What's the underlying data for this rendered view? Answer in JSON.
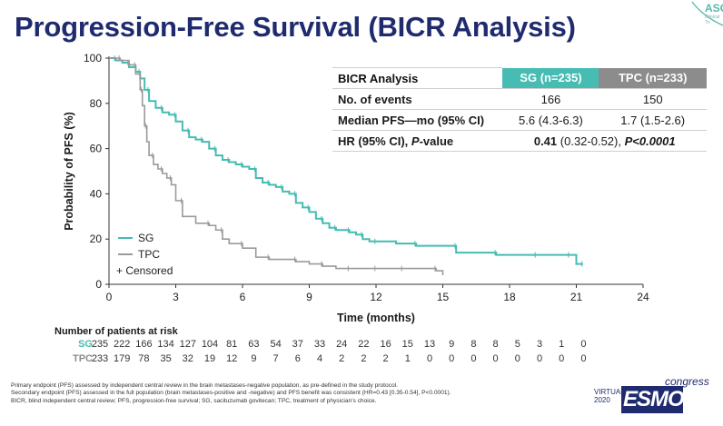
{
  "title": "Progression-Free Survival (BICR Analysis)",
  "logo": {
    "top_right_text": "ASC",
    "top_right_sub": "Clinical Tri",
    "esmo_prefix": "VIRTUAL\n2020",
    "esmo_word": "ESMO",
    "esmo_suffix": "congress"
  },
  "colors": {
    "sg": "#46bcb2",
    "tpc": "#9a9a9a",
    "title": "#1f2b6e"
  },
  "table": {
    "header": [
      "BICR Analysis",
      "SG (n=235)",
      "TPC (n=233)"
    ],
    "rows": [
      {
        "label": "No. of events",
        "sg": "166",
        "tpc": "150"
      },
      {
        "label": "Median PFS—mo (95% CI)",
        "sg": "5.6 (4.3-6.3)",
        "tpc": "1.7 (1.5-2.6)"
      }
    ],
    "hr_label_a": "HR (95% CI), ",
    "hr_label_b": "P",
    "hr_label_c": "-value",
    "hr_value_a": "0.41",
    "hr_value_b": " (0.32-0.52), ",
    "hr_value_c": "P<0.0001"
  },
  "risk": {
    "title": "Number of patients at risk",
    "rows": [
      {
        "label": "SG",
        "values": [
          235,
          222,
          166,
          134,
          127,
          104,
          81,
          63,
          54,
          37,
          33,
          24,
          22,
          16,
          15,
          13,
          9,
          8,
          8,
          5,
          3,
          1,
          0
        ]
      },
      {
        "label": "TPC",
        "values": [
          233,
          179,
          78,
          35,
          32,
          19,
          12,
          9,
          7,
          6,
          4,
          2,
          2,
          2,
          1,
          0,
          0,
          0,
          0,
          0,
          0,
          0,
          0
        ]
      }
    ]
  },
  "footnotes": [
    "Primary endpoint (PFS) assessed by independent central review in the brain metastases-negative population, as pre-defined in the study protocol.",
    "Secondary endpoint (PFS) assessed in the full population (brain metastases-positive and -negative) and PFS benefit was consistent (HR=0.43 [0.35-0.54], P<0.0001).",
    "BICR, blind independent central review; PFS, progression-free survival; SG, sacituzumab govitecan; TPC, treatment of physician’s choice."
  ],
  "chart_data": {
    "type": "line",
    "xlabel": "Time (months)",
    "ylabel": "Probability of PFS (%)",
    "xlim": [
      0,
      24
    ],
    "ylim": [
      0,
      100
    ],
    "xticks": [
      0,
      3,
      6,
      9,
      12,
      15,
      18,
      21,
      24
    ],
    "yticks": [
      0,
      20,
      40,
      60,
      80,
      100
    ],
    "grid": false,
    "legend_position": "bottom-left",
    "legend": [
      "SG",
      "TPC",
      "+ Censored"
    ],
    "series": [
      {
        "name": "SG",
        "x": [
          0,
          0.3,
          0.6,
          0.9,
          1.2,
          1.4,
          1.6,
          1.8,
          2.1,
          2.4,
          2.7,
          3.0,
          3.3,
          3.6,
          3.9,
          4.2,
          4.5,
          4.8,
          5.1,
          5.4,
          5.7,
          6.0,
          6.3,
          6.6,
          6.9,
          7.2,
          7.5,
          7.8,
          8.1,
          8.4,
          8.7,
          9.0,
          9.3,
          9.6,
          9.9,
          10.2,
          10.5,
          10.8,
          11.1,
          11.4,
          11.7,
          12.0,
          12.9,
          13.8,
          14.7,
          15.6,
          16.5,
          17.4,
          18.3,
          19.2,
          20.1,
          20.7,
          21.0,
          21.3
        ],
        "y": [
          100,
          99,
          98,
          96,
          94,
          91,
          86,
          81,
          78,
          76,
          75,
          72,
          68,
          65,
          64,
          63,
          60,
          57,
          55,
          54,
          53,
          52,
          51,
          47,
          45,
          44,
          43,
          41,
          40,
          36,
          34,
          32,
          29,
          27,
          25,
          24,
          24,
          23,
          22,
          20,
          19,
          19,
          18,
          17,
          17,
          14,
          14,
          13,
          13,
          13,
          13,
          13,
          9,
          9
        ]
      },
      {
        "name": "TPC",
        "x": [
          0,
          0.5,
          0.9,
          1.2,
          1.4,
          1.5,
          1.6,
          1.7,
          1.8,
          2.0,
          2.2,
          2.4,
          2.6,
          2.8,
          3.0,
          3.3,
          3.9,
          4.5,
          4.8,
          5.1,
          5.4,
          6.0,
          6.6,
          7.2,
          7.8,
          8.4,
          9.0,
          9.6,
          10.2,
          10.8,
          11.4,
          12.0,
          12.6,
          13.2,
          14.1,
          14.7,
          15.0
        ],
        "y": [
          100,
          99,
          97,
          93,
          86,
          79,
          70,
          63,
          57,
          53,
          51,
          49,
          47,
          44,
          37,
          30,
          27,
          26,
          24,
          20,
          18,
          16,
          12,
          11,
          11,
          10,
          9,
          8,
          7,
          7,
          7,
          7,
          7,
          7,
          7,
          6,
          4
        ]
      }
    ]
  }
}
